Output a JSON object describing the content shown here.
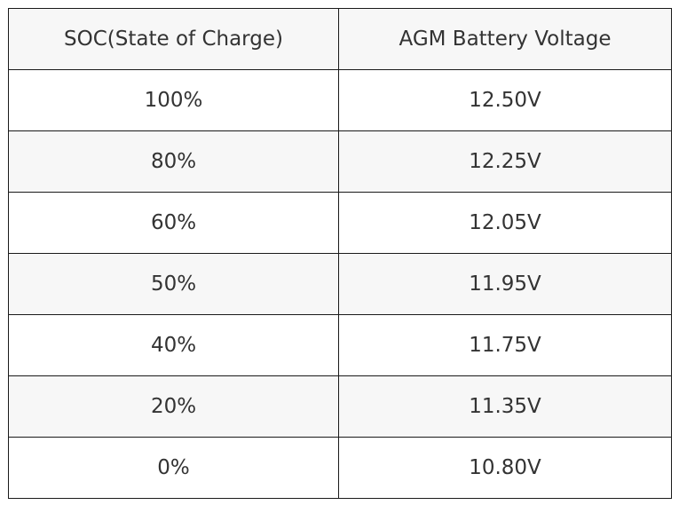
{
  "table": {
    "headers": [
      "SOC(State of Charge)",
      "AGM Battery Voltage"
    ],
    "rows": [
      [
        "100%",
        "12.50V"
      ],
      [
        "80%",
        "12.25V"
      ],
      [
        "60%",
        "12.05V"
      ],
      [
        "50%",
        "11.95V"
      ],
      [
        "40%",
        "11.75V"
      ],
      [
        "20%",
        "11.35V"
      ],
      [
        "0%",
        "10.80V"
      ]
    ]
  },
  "colors": {
    "border": "#1a1a1a",
    "text": "#333333",
    "shaded_row": "#f7f7f7",
    "plain_row": "#ffffff"
  }
}
